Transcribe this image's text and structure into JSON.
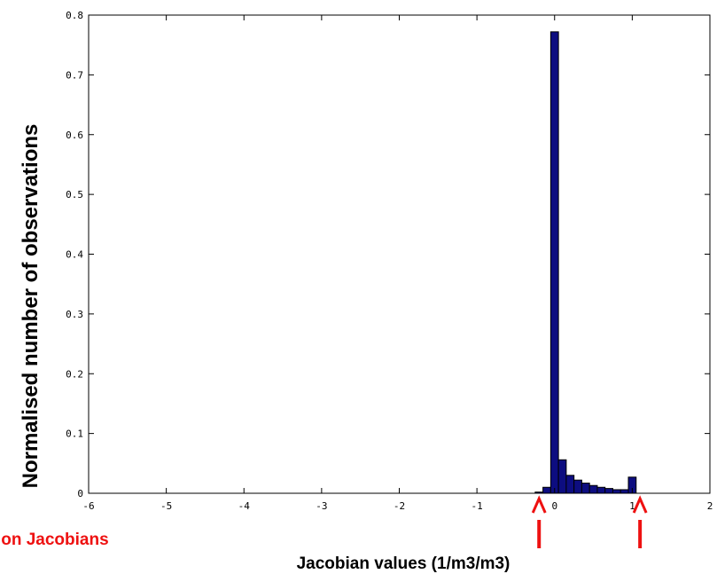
{
  "chart_data": {
    "type": "bar",
    "title": "",
    "xlabel": "Jacobian values (1/m3/m3)",
    "ylabel": "Normalised number of observations",
    "xlim": [
      -6,
      2
    ],
    "ylim": [
      0,
      0.8
    ],
    "xticks": [
      "-6",
      "-5",
      "-4",
      "-3",
      "-2",
      "-1",
      "0",
      "1",
      "2"
    ],
    "yticks": [
      "0",
      "0.1",
      "0.2",
      "0.3",
      "0.4",
      "0.5",
      "0.6",
      "0.7",
      "0.8"
    ],
    "bin_width": 0.1,
    "bins": [
      {
        "x": -0.2,
        "value": 0.002
      },
      {
        "x": -0.1,
        "value": 0.01
      },
      {
        "x": 0.0,
        "value": 0.772
      },
      {
        "x": 0.1,
        "value": 0.056
      },
      {
        "x": 0.2,
        "value": 0.03
      },
      {
        "x": 0.3,
        "value": 0.022
      },
      {
        "x": 0.4,
        "value": 0.017
      },
      {
        "x": 0.5,
        "value": 0.013
      },
      {
        "x": 0.6,
        "value": 0.01
      },
      {
        "x": 0.7,
        "value": 0.008
      },
      {
        "x": 0.8,
        "value": 0.006
      },
      {
        "x": 0.9,
        "value": 0.006
      },
      {
        "x": 1.0,
        "value": 0.027
      }
    ],
    "bar_color": "#0d0d80",
    "grid": false,
    "annotation": {
      "text": "Limits on Jacobians",
      "color": "#ee1111",
      "arrow_x": [
        -0.2,
        1.1
      ]
    }
  }
}
